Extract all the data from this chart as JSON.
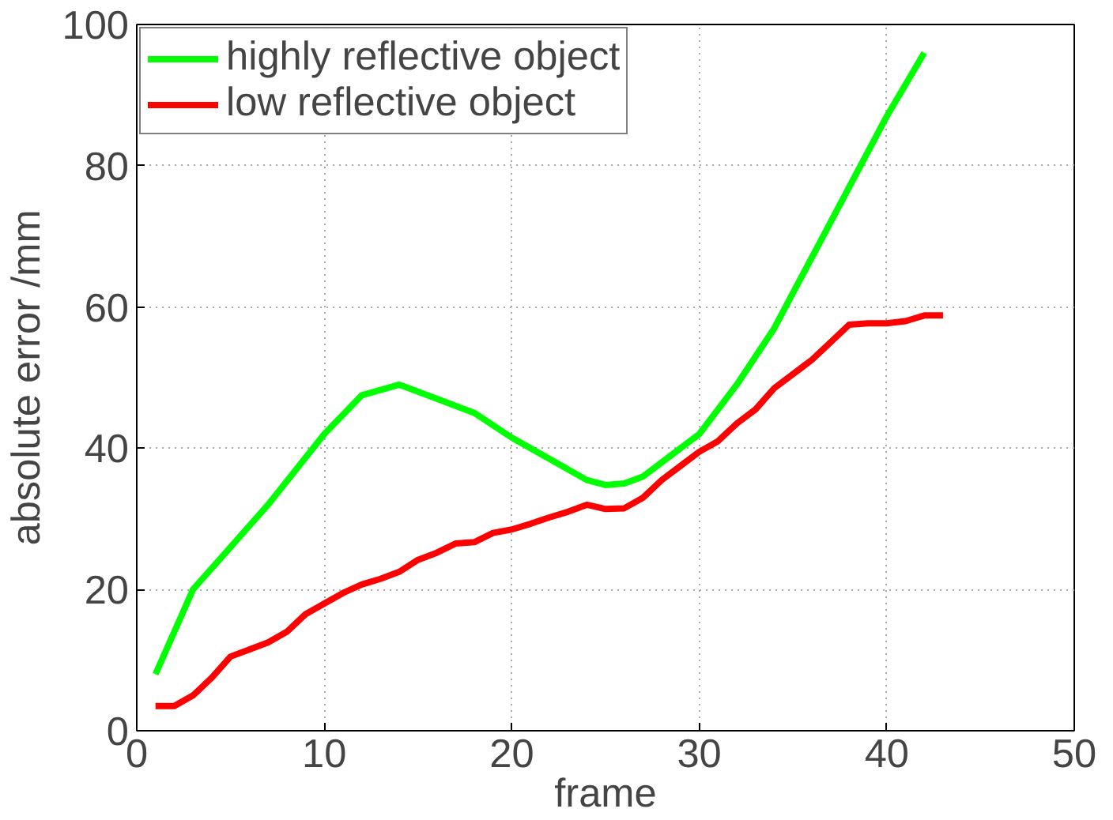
{
  "chart_data": {
    "type": "line",
    "xlabel": "frame",
    "ylabel": "absolute error /mm",
    "xlim": [
      0,
      50
    ],
    "xticks": [
      0,
      10,
      20,
      30,
      40,
      50
    ],
    "ylim": [
      0,
      100
    ],
    "yticks": [
      0,
      20,
      40,
      60,
      80,
      100
    ],
    "grid": true,
    "legend": "top left",
    "line_style": "solid",
    "series": [
      {
        "name": "highly reflective object",
        "color": "#00ff00",
        "x": [
          1,
          2,
          3,
          4,
          5,
          7,
          10,
          12,
          14,
          16,
          18,
          20,
          22,
          24,
          25,
          26,
          27,
          28,
          30,
          32,
          34,
          36,
          38,
          40,
          42
        ],
        "values": [
          8,
          14,
          20,
          23,
          26,
          32,
          42,
          47.5,
          49,
          47,
          45,
          41.5,
          38.5,
          35.5,
          34.8,
          35,
          36,
          38,
          42,
          49,
          57,
          67,
          77,
          87,
          96
        ]
      },
      {
        "name": "low reflective object",
        "color": "#ff0000",
        "x": [
          1,
          2,
          3,
          4,
          5,
          6,
          7,
          8,
          9,
          10,
          11,
          12,
          13,
          14,
          15,
          16,
          17,
          18,
          19,
          20,
          21,
          22,
          23,
          24,
          25,
          26,
          27,
          28,
          29,
          30,
          31,
          32,
          33,
          34,
          35,
          36,
          37,
          38,
          39,
          40,
          41,
          42,
          43
        ],
        "values": [
          3.5,
          3.5,
          5,
          7.5,
          10.5,
          11.5,
          12.5,
          14,
          16.5,
          18,
          19.5,
          20.7,
          21.5,
          22.5,
          24.2,
          25.2,
          26.5,
          26.7,
          28,
          28.5,
          29.3,
          30.2,
          31,
          32,
          31.4,
          31.5,
          33,
          35.5,
          37.5,
          39.5,
          41,
          43.5,
          45.5,
          48.5,
          50.5,
          52.5,
          55,
          57.5,
          57.7,
          57.7,
          58,
          58.8,
          58.8
        ]
      }
    ]
  }
}
